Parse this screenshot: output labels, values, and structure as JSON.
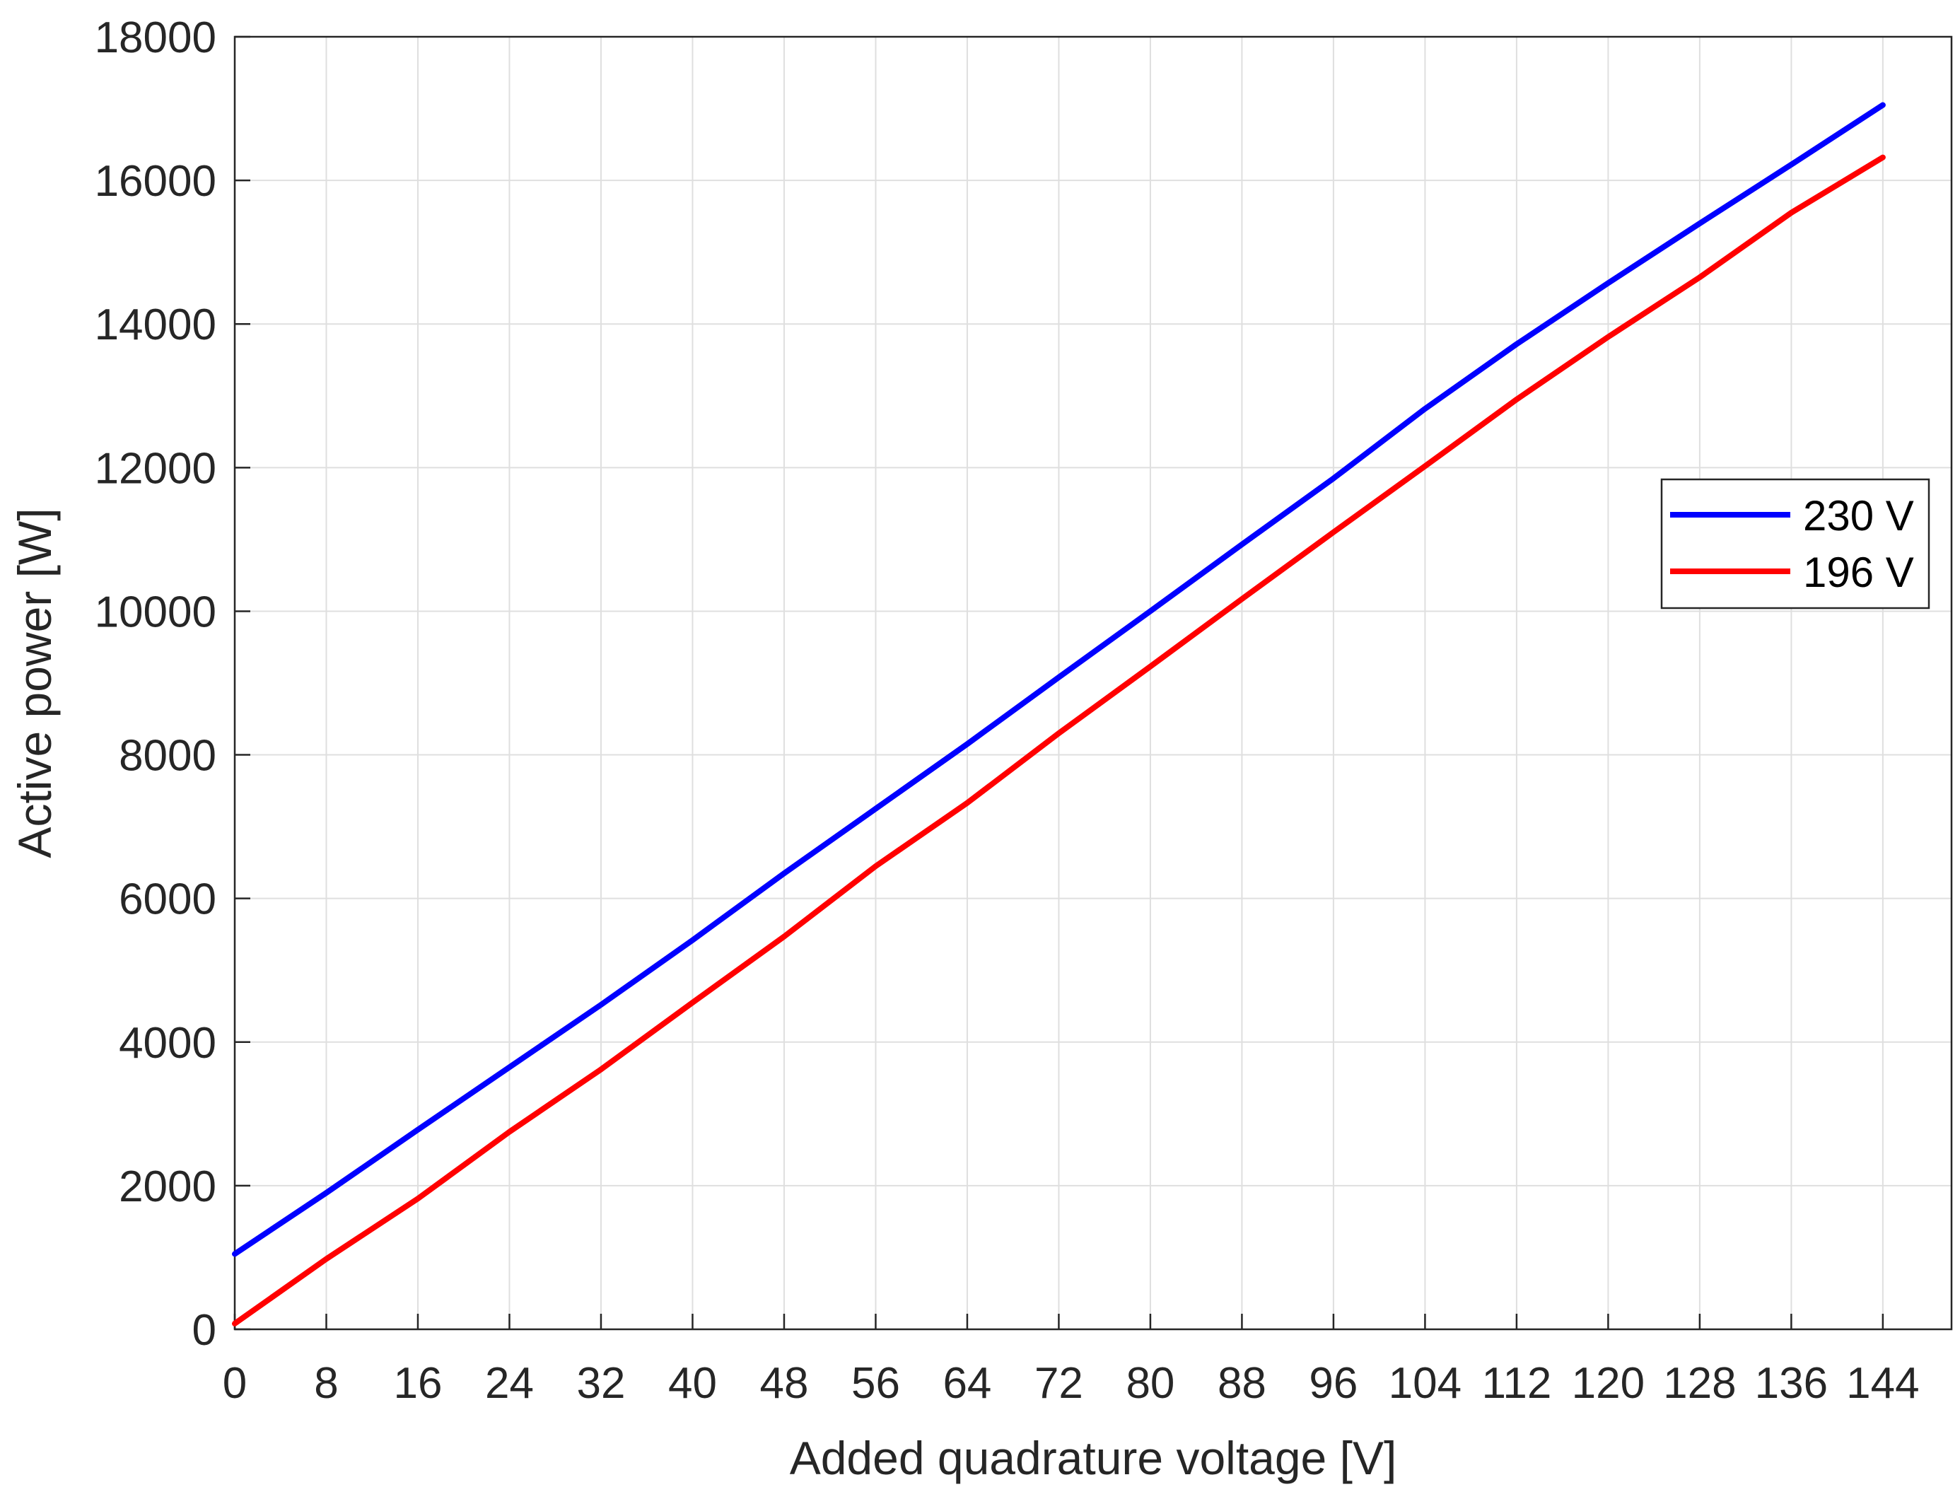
{
  "chart_data": {
    "type": "line",
    "title": "",
    "xlabel": "Added quadrature voltage [V]",
    "ylabel": "Active power [W]",
    "xlim": [
      0,
      150
    ],
    "ylim": [
      0,
      18000
    ],
    "xticks": [
      0,
      8,
      16,
      24,
      32,
      40,
      48,
      56,
      64,
      72,
      80,
      88,
      96,
      104,
      112,
      120,
      128,
      136,
      144
    ],
    "yticks": [
      0,
      2000,
      4000,
      6000,
      8000,
      10000,
      12000,
      14000,
      16000,
      18000
    ],
    "xtick_labels": [
      "0",
      "8",
      "16",
      "24",
      "32",
      "40",
      "48",
      "56",
      "64",
      "72",
      "80",
      "88",
      "96",
      "104",
      "112",
      "120",
      "128",
      "136",
      "144"
    ],
    "ytick_labels": [
      "0",
      "2000",
      "4000",
      "6000",
      "8000",
      "10000",
      "12000",
      "14000",
      "16000",
      "18000"
    ],
    "grid": true,
    "legend_position": "right",
    "x": [
      0,
      8,
      16,
      24,
      32,
      40,
      48,
      56,
      64,
      72,
      80,
      88,
      96,
      104,
      112,
      120,
      128,
      136,
      144
    ],
    "series": [
      {
        "name": "230 V",
        "color": "#0000ff",
        "values": [
          1050,
          1900,
          2780,
          3650,
          4520,
          5420,
          6350,
          7250,
          8150,
          9080,
          10000,
          10930,
          11850,
          12820,
          13720,
          14570,
          15400,
          16220,
          17050
        ]
      },
      {
        "name": "196 V",
        "color": "#ff0000",
        "values": [
          80,
          980,
          1820,
          2750,
          3620,
          4550,
          5470,
          6450,
          7330,
          8300,
          9230,
          10170,
          11100,
          12020,
          12950,
          13820,
          14650,
          15550,
          16320
        ]
      }
    ]
  }
}
